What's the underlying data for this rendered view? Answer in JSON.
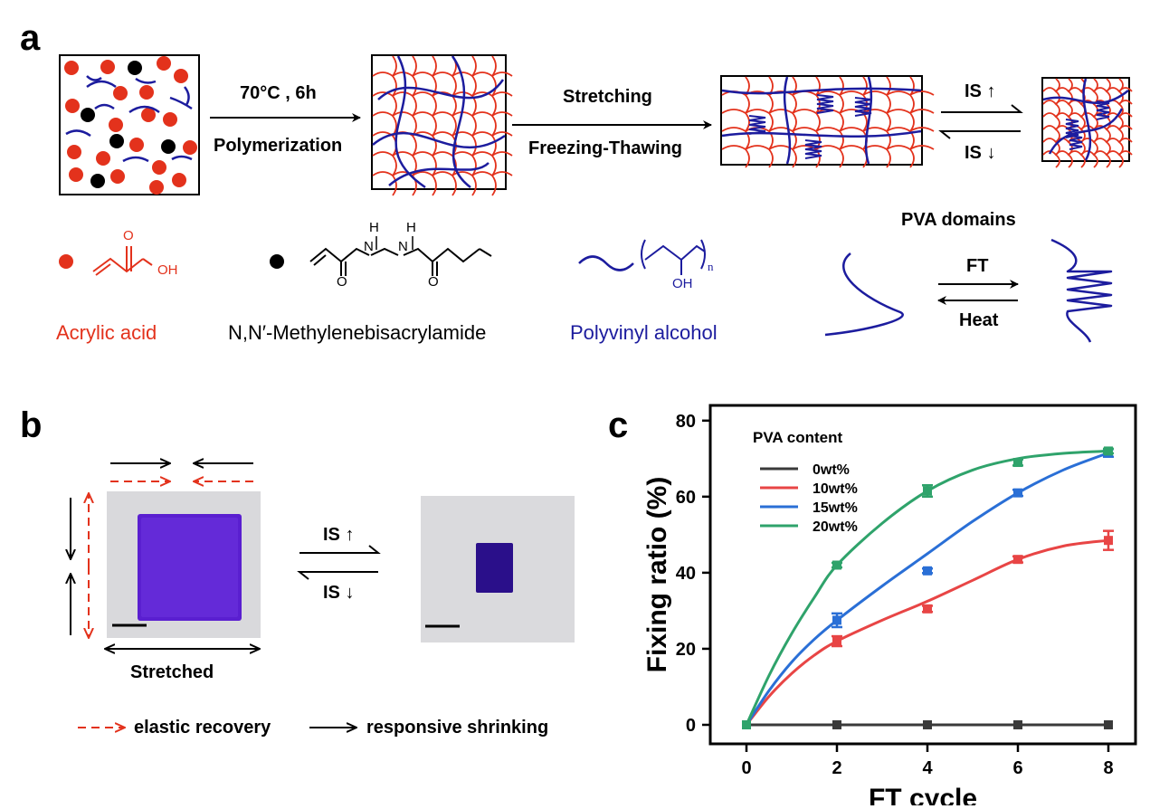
{
  "panel_a": {
    "letter": "a",
    "step1_condition": "70°C , 6h",
    "step1_label": "Polymerization",
    "step2_label_top": "Stretching",
    "step2_label_bottom": "Freezing-Thawing",
    "is_up": "IS",
    "is_down": "IS",
    "legend_acrylic": "Acrylic acid",
    "legend_mba": "N,N′-Methylenebisacrylamide",
    "legend_pva": "Polyvinyl alcohol",
    "chem_oh": "OH",
    "chem_o": "O",
    "chem_h": "H",
    "chem_n": "N",
    "chem_sub_n": "n",
    "pva_domains_title": "PVA domains",
    "ft_label": "FT",
    "heat_label": "Heat"
  },
  "panel_b": {
    "letter": "b",
    "is_up": "IS",
    "is_down": "IS",
    "stretched_label": "Stretched",
    "legend_elastic": "elastic recovery",
    "legend_responsive": "responsive shrinking"
  },
  "panel_c": {
    "letter": "c"
  },
  "colors": {
    "red": "#e3321c",
    "blue": "#1c1c9e",
    "series_0": "#3a3a3a",
    "series_10": "#e84545",
    "series_15": "#2a6fd6",
    "series_20": "#2fa36b",
    "gel_purple": "#5a1fd0"
  },
  "chart_data": {
    "type": "line",
    "title": "",
    "xlabel": "FT cycle",
    "ylabel": "Fixing ratio (%)",
    "xlim": [
      -0.8,
      8.6
    ],
    "ylim": [
      -5,
      84
    ],
    "xticks": [
      0,
      2,
      4,
      6,
      8
    ],
    "yticks": [
      0,
      20,
      40,
      60,
      80
    ],
    "legend_title": "PVA content",
    "legend_position": "top-left",
    "grid": false,
    "x": [
      0,
      2,
      4,
      6,
      8
    ],
    "series": [
      {
        "name": "0wt%",
        "color": "#3a3a3a",
        "marker": "square",
        "values": [
          0,
          0,
          0,
          0,
          0
        ],
        "errors": [
          0,
          0,
          0,
          0,
          0
        ]
      },
      {
        "name": "10wt%",
        "color": "#e84545",
        "marker": "square",
        "values": [
          0,
          22,
          30.5,
          43.5,
          48.5
        ],
        "errors": [
          0,
          1.3,
          0.8,
          0.8,
          2.5
        ]
      },
      {
        "name": "15wt%",
        "color": "#2a6fd6",
        "marker": "square",
        "values": [
          0,
          27.5,
          40.5,
          61,
          71.5
        ],
        "errors": [
          0,
          1.8,
          0.6,
          0.8,
          1.0
        ]
      },
      {
        "name": "20wt%",
        "color": "#2fa36b",
        "marker": "square",
        "values": [
          0,
          42,
          61.5,
          69,
          72
        ],
        "errors": [
          0,
          0.6,
          1.5,
          0.8,
          0.6
        ]
      }
    ],
    "fit_curves": [
      {
        "series": "10wt%",
        "points": [
          [
            0,
            0
          ],
          [
            0.5,
            7.5
          ],
          [
            1,
            13.5
          ],
          [
            1.5,
            18.3
          ],
          [
            2,
            22
          ],
          [
            3,
            27.5
          ],
          [
            4,
            32.5
          ],
          [
            5,
            38
          ],
          [
            6,
            43.5
          ],
          [
            7,
            47
          ],
          [
            8,
            48.5
          ]
        ]
      },
      {
        "series": "15wt%",
        "points": [
          [
            0,
            0
          ],
          [
            0.5,
            9
          ],
          [
            1,
            16.5
          ],
          [
            1.5,
            22.5
          ],
          [
            2,
            27.5
          ],
          [
            3,
            36.5
          ],
          [
            4,
            45
          ],
          [
            5,
            53.5
          ],
          [
            6,
            61
          ],
          [
            7,
            67
          ],
          [
            8,
            71.5
          ]
        ]
      },
      {
        "series": "20wt%",
        "points": [
          [
            0,
            0
          ],
          [
            0.5,
            13
          ],
          [
            1,
            24
          ],
          [
            1.5,
            33.5
          ],
          [
            2,
            42
          ],
          [
            3,
            53
          ],
          [
            4,
            61.5
          ],
          [
            5,
            67
          ],
          [
            6,
            70
          ],
          [
            7,
            71.4
          ],
          [
            8,
            72
          ]
        ]
      }
    ]
  }
}
